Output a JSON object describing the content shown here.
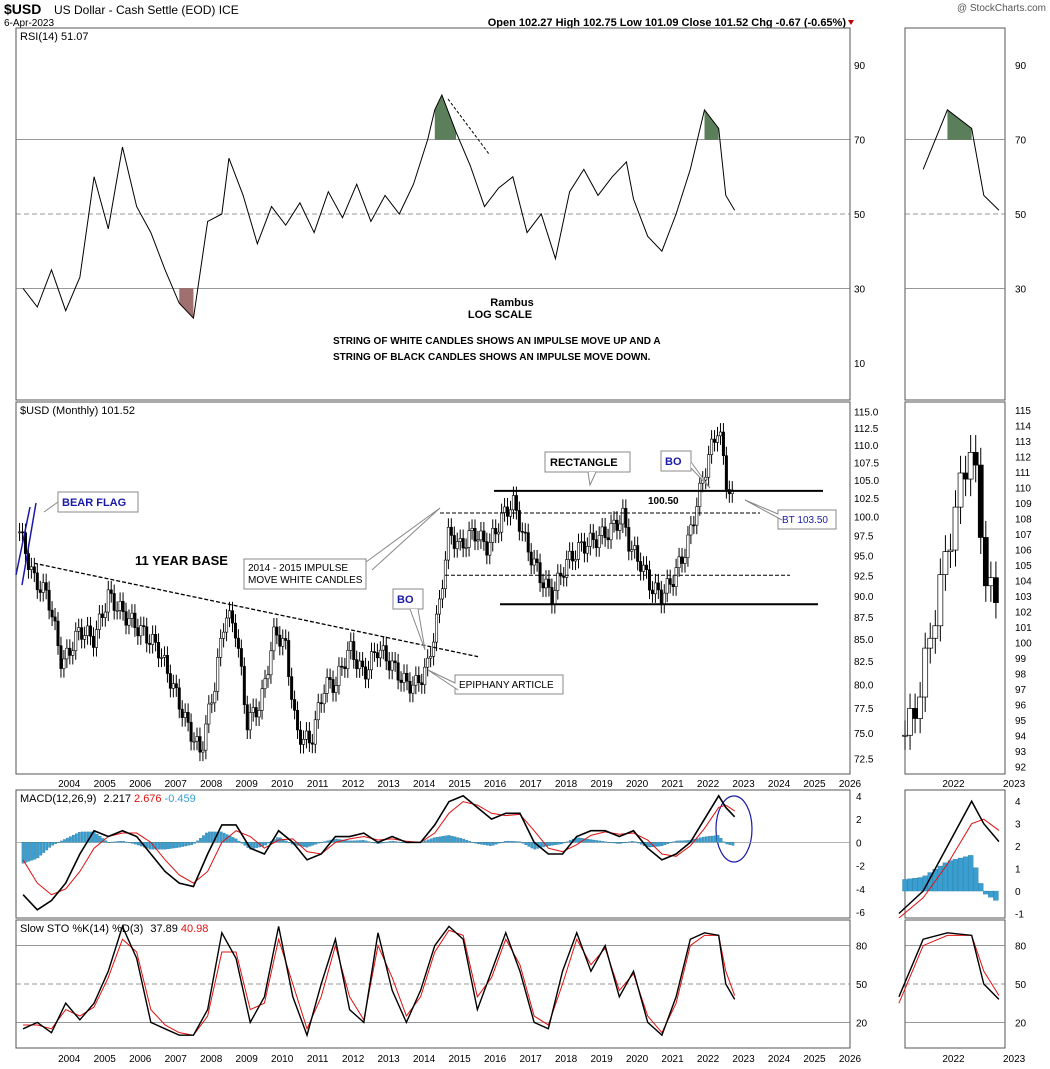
{
  "header": {
    "symbol": "$USD",
    "description": "US Dollar - Cash Settle (EOD) ICE",
    "date": "6-Apr-2023",
    "watermark": "@ StockCharts.com",
    "ohlc": "Open 102.27  High 102.75  Low 101.09  Close 101.52  Chg -0.67 (-0.65%)"
  },
  "colors": {
    "panel_border": "#555555",
    "grid": "#cccccc",
    "price": "#000000",
    "signal": "#e01010",
    "histogram": "#3a9fd0",
    "rsi_overbought_fill": "#5b7f5b",
    "rsi_oversold_fill": "#a07070",
    "annotation_blue": "#1a1aa8"
  },
  "chart_data": [
    {
      "type": "line",
      "panel": "rsi",
      "legend": "RSI(14) 51.07",
      "y_ticks": [
        10,
        30,
        50,
        70,
        90
      ],
      "ylim": [
        0,
        100
      ],
      "reference_lines": [
        30,
        50,
        70
      ],
      "x": [
        2003.2,
        2003.6,
        2004.0,
        2004.4,
        2004.8,
        2005.2,
        2005.6,
        2006.0,
        2006.4,
        2006.8,
        2007.2,
        2007.6,
        2008.0,
        2008.4,
        2008.8,
        2009.0,
        2009.4,
        2009.8,
        2010.2,
        2010.6,
        2011.0,
        2011.4,
        2011.8,
        2012.2,
        2012.6,
        2013.0,
        2013.4,
        2013.8,
        2014.2,
        2014.6,
        2014.8,
        2015.0,
        2015.4,
        2015.8,
        2016.2,
        2016.6,
        2017.0,
        2017.4,
        2017.8,
        2018.2,
        2018.6,
        2019.0,
        2019.4,
        2019.8,
        2020.2,
        2020.4,
        2020.8,
        2021.2,
        2021.6,
        2022.0,
        2022.4,
        2022.8,
        2023.0,
        2023.25
      ],
      "values": [
        30,
        25,
        35,
        24,
        33,
        60,
        46,
        68,
        52,
        45,
        35,
        26,
        22,
        48,
        50,
        65,
        55,
        42,
        52,
        47,
        53,
        45,
        56,
        49,
        58,
        48,
        55,
        50,
        58,
        70,
        78,
        82,
        72,
        63,
        52,
        57,
        60,
        45,
        50,
        38,
        56,
        62,
        55,
        60,
        64,
        54,
        44,
        40,
        50,
        62,
        78,
        73,
        55,
        51
      ]
    },
    {
      "type": "candlestick",
      "panel": "price",
      "legend": "$USD (Monthly) 101.52",
      "log_scale": true,
      "y_ticks": [
        72.5,
        75.0,
        77.5,
        80.0,
        82.5,
        85.0,
        87.5,
        90.0,
        92.5,
        95.0,
        97.5,
        100.0,
        102.5,
        105.0,
        107.5,
        110.0,
        112.5,
        115.0
      ],
      "x_ticks": [
        "2004",
        "2005",
        "2006",
        "2007",
        "2008",
        "2009",
        "2010",
        "2011",
        "2012",
        "2013",
        "2014",
        "2015",
        "2016",
        "2017",
        "2018",
        "2019",
        "2020",
        "2021",
        "2022",
        "2023",
        "2024",
        "2025",
        "2026"
      ],
      "close_path_x": [
        2003.1,
        2003.5,
        2003.9,
        2004.3,
        2004.8,
        2005.2,
        2005.6,
        2006.0,
        2006.5,
        2007.0,
        2007.4,
        2007.8,
        2008.2,
        2008.6,
        2008.9,
        2009.2,
        2009.5,
        2009.9,
        2010.3,
        2010.6,
        2010.9,
        2011.3,
        2011.7,
        2012.0,
        2012.4,
        2012.8,
        2013.2,
        2013.6,
        2014.0,
        2014.3,
        2014.6,
        2014.9,
        2015.2,
        2015.5,
        2015.9,
        2016.3,
        2016.7,
        2017.0,
        2017.4,
        2017.8,
        2018.1,
        2018.5,
        2018.9,
        2019.3,
        2019.7,
        2020.1,
        2020.3,
        2020.6,
        2020.9,
        2021.2,
        2021.5,
        2021.9,
        2022.2,
        2022.5,
        2022.8,
        2023.0,
        2023.25
      ],
      "close_path_values": [
        98,
        92,
        90,
        82,
        86,
        85,
        90,
        88,
        86,
        84,
        80,
        76,
        73,
        80,
        88,
        86,
        76,
        78,
        86,
        84,
        75,
        74,
        80,
        80,
        84,
        81,
        84,
        82,
        80,
        80,
        82,
        88,
        98,
        96,
        98,
        96,
        100,
        102,
        96,
        92,
        90,
        94,
        96,
        97,
        98,
        100,
        96,
        94,
        91,
        90,
        92,
        96,
        102,
        108,
        113,
        105,
        101.5
      ],
      "annotations": [
        "BEAR FLAG",
        "11 YEAR BASE",
        "2014 - 2015 IMPULSE",
        "MOVE WHITE CANDLES",
        "BO",
        "EPIPHANY ARTICLE",
        "RECTANGLE",
        "BO",
        "100.50",
        "BT 103.50"
      ],
      "levels": {
        "rectangle_top": 103.5,
        "rectangle_mid": 100.5,
        "rectangle_inner": 92.5,
        "rectangle_bottom": 89.0
      }
    },
    {
      "type": "line",
      "panel": "macd",
      "legend_label": "MACD(12,26,9)",
      "legend_macd": "2.217",
      "legend_signal": "2.676",
      "legend_hist": "-0.459",
      "y_ticks": [
        -6,
        -4,
        -2,
        0,
        2,
        4
      ],
      "ylim": [
        -6.5,
        4.5
      ],
      "x": [
        2003.2,
        2003.6,
        2004.0,
        2004.4,
        2004.8,
        2005.2,
        2005.6,
        2006.0,
        2006.4,
        2006.8,
        2007.2,
        2007.6,
        2008.0,
        2008.4,
        2008.8,
        2009.2,
        2009.6,
        2010.0,
        2010.4,
        2010.8,
        2011.2,
        2011.6,
        2012.0,
        2012.4,
        2012.8,
        2013.2,
        2013.6,
        2014.0,
        2014.4,
        2014.8,
        2015.2,
        2015.6,
        2016.0,
        2016.4,
        2016.8,
        2017.2,
        2017.6,
        2018.0,
        2018.4,
        2018.8,
        2019.2,
        2019.6,
        2020.0,
        2020.4,
        2020.8,
        2021.2,
        2021.6,
        2022.0,
        2022.4,
        2022.8,
        2023.0,
        2023.25
      ],
      "macd": [
        -4.5,
        -5.8,
        -5,
        -3.5,
        -1,
        1,
        0.5,
        1,
        0.5,
        -1,
        -2.5,
        -3.5,
        -3.8,
        -1,
        1.5,
        1.5,
        -0.5,
        -1,
        1,
        0,
        -1.5,
        -1,
        0.5,
        0.5,
        0.8,
        0,
        0.5,
        0,
        0,
        1.5,
        3.5,
        4,
        3,
        2,
        2.5,
        2.5,
        0,
        -1,
        -1,
        0.5,
        1,
        1,
        0.5,
        1,
        -0.5,
        -1.5,
        -1,
        0,
        2,
        4,
        3,
        2.2
      ],
      "signal": [
        -1.5,
        -3.5,
        -4.5,
        -4,
        -2.5,
        -0.5,
        0.5,
        0.8,
        0.8,
        0,
        -1.5,
        -2.8,
        -3.5,
        -2.5,
        0,
        1,
        0.5,
        -0.5,
        0.2,
        0.3,
        -0.8,
        -1,
        0,
        0.3,
        0.5,
        0.2,
        0.3,
        0.1,
        0,
        0.8,
        2.5,
        3.5,
        3.2,
        2.5,
        2.3,
        2.4,
        1,
        -0.5,
        -0.8,
        -0.2,
        0.6,
        0.9,
        0.7,
        0.8,
        0.2,
        -1,
        -1.2,
        -0.3,
        1.2,
        3,
        3.2,
        2.7
      ]
    },
    {
      "type": "line",
      "panel": "stochastic",
      "legend_label": "Slow STO %K(14) %D(3)",
      "legend_k": "37.89",
      "legend_d": "40.98",
      "y_ticks": [
        20,
        50,
        80
      ],
      "ylim": [
        0,
        100
      ],
      "x": [
        2003.2,
        2003.6,
        2004.0,
        2004.4,
        2004.8,
        2005.2,
        2005.6,
        2006.0,
        2006.4,
        2006.8,
        2007.2,
        2007.6,
        2008.0,
        2008.4,
        2008.8,
        2009.2,
        2009.6,
        2010.0,
        2010.4,
        2010.8,
        2011.2,
        2011.6,
        2012.0,
        2012.4,
        2012.8,
        2013.2,
        2013.6,
        2014.0,
        2014.4,
        2014.8,
        2015.2,
        2015.6,
        2016.0,
        2016.4,
        2016.8,
        2017.2,
        2017.6,
        2018.0,
        2018.4,
        2018.8,
        2019.2,
        2019.6,
        2020.0,
        2020.4,
        2020.8,
        2021.2,
        2021.6,
        2022.0,
        2022.4,
        2022.8,
        2023.0,
        2023.25
      ],
      "k": [
        15,
        20,
        12,
        35,
        22,
        35,
        60,
        95,
        70,
        20,
        15,
        10,
        10,
        30,
        90,
        70,
        20,
        40,
        95,
        40,
        10,
        50,
        85,
        30,
        20,
        90,
        45,
        20,
        45,
        80,
        95,
        85,
        30,
        60,
        90,
        60,
        20,
        15,
        60,
        90,
        60,
        80,
        40,
        60,
        20,
        10,
        40,
        85,
        90,
        88,
        50,
        38
      ],
      "d": [
        18,
        18,
        15,
        30,
        25,
        32,
        55,
        85,
        75,
        30,
        18,
        12,
        10,
        25,
        75,
        75,
        30,
        35,
        85,
        50,
        15,
        40,
        80,
        40,
        22,
        80,
        55,
        25,
        40,
        75,
        92,
        88,
        40,
        55,
        85,
        65,
        25,
        18,
        50,
        85,
        65,
        78,
        45,
        58,
        25,
        12,
        35,
        80,
        88,
        88,
        60,
        41
      ]
    }
  ],
  "inset": {
    "x_ticks": [
      "2022",
      "2023"
    ],
    "rsi_ticks": [
      30,
      50,
      70,
      90
    ],
    "price_ticks": [
      92,
      93,
      94,
      95,
      96,
      97,
      98,
      99,
      100,
      101,
      102,
      103,
      104,
      105,
      106,
      107,
      108,
      109,
      110,
      111,
      112,
      113,
      114,
      115
    ],
    "macd_ticks": [
      -1,
      0,
      1,
      2,
      3,
      4
    ],
    "sto_ticks": [
      20,
      50,
      80
    ]
  },
  "annotations": {
    "rambus": "Rambus",
    "log_scale": "LOG SCALE",
    "note_line1": "STRING OF WHITE CANDLES SHOWS AN IMPULSE MOVE UP AND A",
    "note_line2": "STRING OF BLACK CANDLES SHOWS AN IMPULSE MOVE DOWN."
  }
}
